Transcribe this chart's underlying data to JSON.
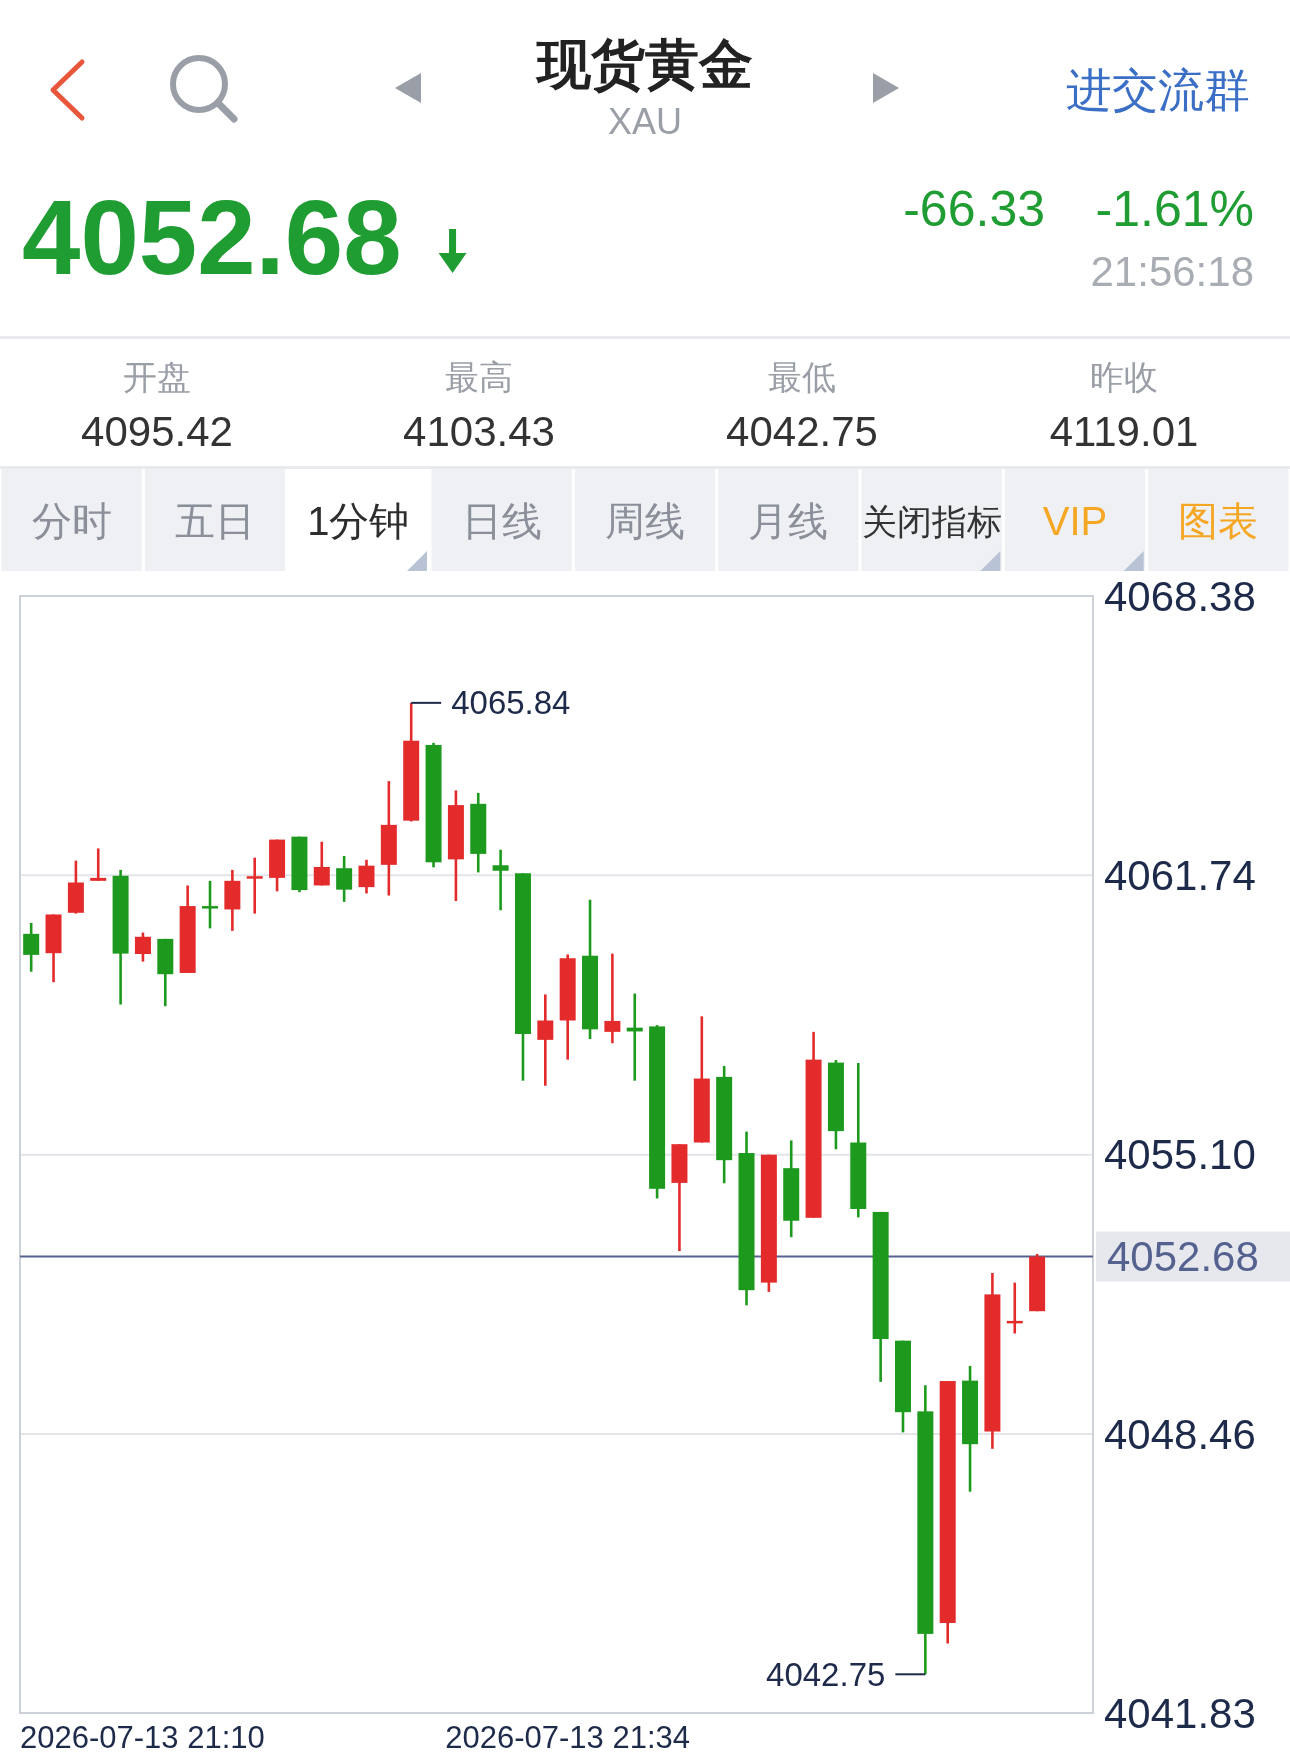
{
  "chart_data": [
    {
      "type": "other",
      "title": "现货黄金",
      "subtitle": "XAU",
      "annotations": [
        "进交流群",
        "4052.68",
        "-66.33",
        "-1.61%",
        "21:56:18",
        "开盘",
        "4095.42",
        "最高",
        "4103.43",
        "最低",
        "4042.75",
        "昨收",
        "4119.01",
        "分时",
        "五日",
        "1分钟",
        "日线",
        "周线",
        "月线",
        "关闭指标",
        "VIP",
        "图表"
      ]
    },
    {
      "type": "candlestick",
      "categories": [
        null,
        null,
        null,
        null,
        null,
        null,
        null,
        null,
        null,
        null,
        null,
        null,
        null,
        null,
        null,
        null,
        null,
        null,
        null,
        null,
        null,
        null,
        null,
        null,
        "2026-07-13 21:34",
        null,
        null,
        null,
        null,
        null,
        null,
        null,
        null,
        null,
        null,
        null,
        null,
        null,
        null,
        null,
        null,
        null,
        null,
        null,
        null,
        null,
        null,
        null
      ],
      "ohlc": [
        [
          4060.35,
          4060.61,
          4059.45,
          4059.85
        ],
        [
          4059.89,
          4060.81,
          4059.2,
          4060.81
        ],
        [
          4060.85,
          4062.09,
          4060.83,
          4061.57
        ],
        [
          4061.61,
          4062.38,
          4061.61,
          4061.68
        ],
        [
          4061.73,
          4061.87,
          4058.67,
          4059.88
        ],
        [
          4059.87,
          4060.38,
          4059.69,
          4060.28
        ],
        [
          4060.23,
          4060.23,
          4058.63,
          4059.39
        ],
        [
          4059.42,
          4061.5,
          4059.42,
          4061.01
        ],
        [
          4061.01,
          4061.61,
          4060.48,
          4060.96
        ],
        [
          4060.93,
          4061.87,
          4060.42,
          4061.61
        ],
        [
          4061.68,
          4062.16,
          4060.83,
          4061.72
        ],
        [
          4061.68,
          4062.59,
          4061.36,
          4062.59
        ],
        [
          4062.66,
          4062.66,
          4061.34,
          4061.39
        ],
        [
          4061.5,
          4062.54,
          4061.5,
          4061.94
        ],
        [
          4061.91,
          4062.2,
          4061.11,
          4061.4
        ],
        [
          4061.46,
          4062.11,
          4061.31,
          4061.97
        ],
        [
          4061.99,
          4063.98,
          4061.26,
          4062.94
        ],
        [
          4063.04,
          4065.84,
          4063.02,
          4064.94
        ],
        [
          4064.84,
          4064.89,
          4061.93,
          4062.05
        ],
        [
          4062.12,
          4063.76,
          4061.13,
          4063.41
        ],
        [
          4063.44,
          4063.7,
          4061.81,
          4062.25
        ],
        [
          4061.98,
          4062.35,
          4060.91,
          4061.85
        ],
        [
          4061.79,
          4061.79,
          4056.86,
          4057.97
        ],
        [
          4057.83,
          4058.91,
          4056.74,
          4058.29
        ],
        [
          4058.29,
          4059.86,
          4057.36,
          4059.77
        ],
        [
          4059.83,
          4061.16,
          4057.85,
          4058.08
        ],
        [
          4058.02,
          4059.88,
          4057.75,
          4058.28
        ],
        [
          4058.12,
          4058.93,
          4056.86,
          4058.03
        ],
        [
          4058.15,
          4058.18,
          4054.06,
          4054.29
        ],
        [
          4054.43,
          4055.35,
          4052.81,
          4055.35
        ],
        [
          4055.39,
          4058.39,
          4055.39,
          4056.91
        ],
        [
          4056.95,
          4057.21,
          4054.42,
          4054.97
        ],
        [
          4055.14,
          4055.65,
          4051.52,
          4051.88
        ],
        [
          4052.06,
          4055.1,
          4051.84,
          4055.1
        ],
        [
          4054.78,
          4055.44,
          4053.14,
          4053.53
        ],
        [
          4053.6,
          4058.02,
          4053.6,
          4057.36
        ],
        [
          4057.29,
          4057.35,
          4055.23,
          4055.66
        ],
        [
          4055.39,
          4057.28,
          4053.61,
          4053.81
        ],
        [
          4053.74,
          4053.74,
          4049.7,
          4050.72
        ],
        [
          4050.68,
          4050.68,
          4048.5,
          4048.98
        ],
        [
          4049.0,
          4049.62,
          4042.75,
          4043.71
        ],
        [
          4043.97,
          4049.72,
          4043.48,
          4049.72
        ],
        [
          4049.73,
          4050.08,
          4047.09,
          4048.22
        ],
        [
          4048.52,
          4052.29,
          4048.11,
          4051.78
        ],
        [
          4051.13,
          4052.06,
          4050.85,
          4051.15
        ],
        [
          4051.38,
          4052.74,
          4051.38,
          4052.68
        ],
        null,
        null
      ],
      "colors": [
        "#1d9a1d",
        "#e42b2b",
        "#e42b2b",
        "#e42b2b",
        "#1d9a1d",
        "#e42b2b",
        "#1d9a1d",
        "#e42b2b",
        "#1d9a1d",
        "#e42b2b",
        "#e42b2b",
        "#e42b2b",
        "#1d9a1d",
        "#e42b2b",
        "#1d9a1d",
        "#e42b2b",
        "#e42b2b",
        "#e42b2b",
        "#1d9a1d",
        "#e42b2b",
        "#1d9a1d",
        "#1d9a1d",
        "#1d9a1d",
        "#e42b2b",
        "#e42b2b",
        "#1d9a1d",
        "#e42b2b",
        "#1d9a1d",
        "#1d9a1d",
        "#e42b2b",
        "#e42b2b",
        "#1d9a1d",
        "#1d9a1d",
        "#e42b2b",
        "#1d9a1d",
        "#e42b2b",
        "#1d9a1d",
        "#1d9a1d",
        "#1d9a1d",
        "#1d9a1d",
        "#1d9a1d",
        "#e42b2b",
        "#1d9a1d",
        "#e42b2b",
        "#e42b2b",
        "#e42b2b",
        null,
        null
      ],
      "ylim": [
        4041.83,
        4068.38
      ],
      "yticks": [
        4041.83,
        4048.46,
        {
          "value": 4055.1,
          "label": "4055.10"
        },
        4061.74,
        4068.38
      ],
      "grid": "y",
      "ref_lines": [
        {
          "axis": "y",
          "value": 4052.68,
          "label": "4052.68",
          "color": "#55628f"
        }
      ],
      "annotations": [
        "4065.84",
        "4042.75",
        "2026-07-13 21:10"
      ]
    }
  ]
}
